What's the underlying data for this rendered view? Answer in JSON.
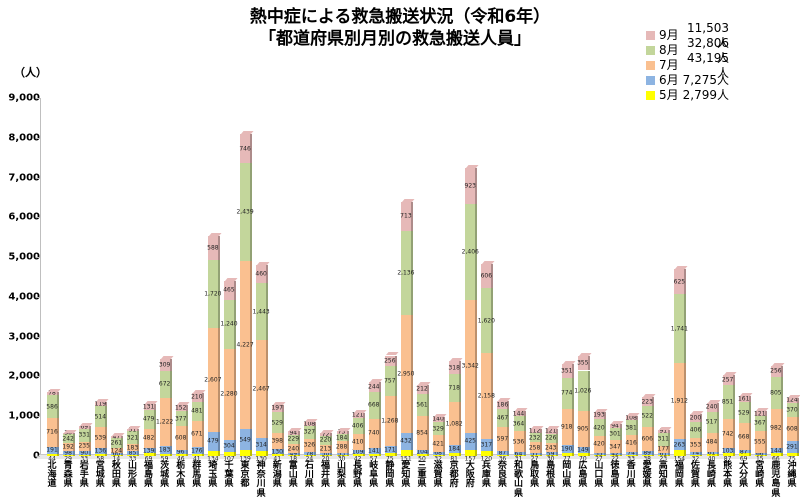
{
  "title": {
    "line1": "熱中症による救急搬送状況（令和6年）",
    "line2": "「都道府県別月別の救急搬送人員」"
  },
  "unit_label": "（人）",
  "legend": [
    {
      "month": "9月",
      "value": "11,503人",
      "color": "#e6b9b8"
    },
    {
      "month": "8月",
      "value": "32,806人",
      "color": "#c3d69b"
    },
    {
      "month": "7月",
      "value": "43,195人",
      "color": "#fac090"
    },
    {
      "month": "6月",
      "value": "7,275人",
      "color": "#8db4e2"
    },
    {
      "month": "5月",
      "value": "2,799人",
      "color": "#ffff00"
    }
  ],
  "y_ticks": [
    "0",
    "1,000",
    "2,000",
    "3,000",
    "4,000",
    "5,000",
    "6,000",
    "7,000",
    "8,000",
    "9,000"
  ],
  "chart_data": {
    "type": "bar",
    "stacked": true,
    "title": "熱中症による救急搬送状況（令和6年）「都道府県別月別の救急搬送人員」",
    "xlabel": "",
    "ylabel": "（人）",
    "ylim": [
      0,
      9000
    ],
    "legend_position": "top-right",
    "categories": [
      "北海道",
      "青森県",
      "岩手県",
      "宮城県",
      "秋田県",
      "山形県",
      "福島県",
      "茨城県",
      "栃木県",
      "群馬県",
      "埼玉県",
      "千葉県",
      "東京都",
      "神奈川県",
      "新潟県",
      "富山県",
      "石川県",
      "福井県",
      "山梨県",
      "長野県",
      "岐阜県",
      "静岡県",
      "愛知県",
      "三重県",
      "滋賀県",
      "京都府",
      "大阪府",
      "兵庫県",
      "奈良県",
      "和歌山県",
      "鳥取県",
      "島根県",
      "岡山県",
      "広島県",
      "山口県",
      "徳島県",
      "香川県",
      "愛媛県",
      "高知県",
      "福岡県",
      "佐賀県",
      "長崎県",
      "熊本県",
      "大分県",
      "宮崎県",
      "鹿児島県",
      "沖縄県"
    ],
    "series": [
      {
        "name": "5月",
        "color": "#ffff00",
        "values": [
          44,
          29,
          33,
          58,
          14,
          33,
          69,
          59,
          46,
          41,
          134,
          107,
          139,
          130,
          41,
          18,
          24,
          20,
          30,
          42,
          57,
          75,
          151,
          50,
          32,
          81,
          157,
          120,
          36,
          31,
          27,
          30,
          77,
          70,
          27,
          22,
          33,
          38,
          23,
          154,
          32,
          40,
          87,
          69,
          15,
          66,
          75
        ]
      },
      {
        "name": "6月",
        "color": "#8db4e2",
        "values": [
          191,
          98,
          90,
          136,
          60,
          85,
          139,
          183,
          96,
          176,
          479,
          304,
          549,
          314,
          130,
          49,
          78,
          50,
          53,
          109,
          141,
          171,
          432,
          104,
          68,
          184,
          425,
          317,
          87,
          64,
          57,
          59,
          190,
          149,
          55,
          42,
          74,
          89,
          61,
          263,
          74,
          61,
          103,
          87,
          66,
          144,
          291
        ]
      },
      {
        "name": "7月",
        "color": "#fac090",
        "values": [
          716,
          192,
          235,
          539,
          124,
          183,
          482,
          1222,
          608,
          671,
          2607,
          2280,
          4227,
          2467,
          398,
          240,
          326,
          213,
          288,
          410,
          740,
          1268,
          2950,
          854,
          421,
          1082,
          3342,
          2158,
          597,
          536,
          258,
          243,
          918,
          905,
          420,
          347,
          416,
          606,
          177,
          1912,
          353,
          484,
          742,
          668,
          555,
          982,
          608
        ]
      },
      {
        "name": "8月",
        "color": "#c3d69b",
        "values": [
          586,
          242,
          331,
          514,
          261,
          321,
          479,
          672,
          377,
          481,
          1720,
          1240,
          2439,
          1443,
          529,
          229,
          327,
          220,
          184,
          406,
          668,
          757,
          2136,
          561,
          329,
          718,
          2406,
          1620,
          467,
          364,
          232,
          226,
          774,
          1026,
          420,
          301,
          381,
          522,
          311,
          1741,
          406,
          517,
          851,
          529,
          367,
          805,
          370
        ]
      },
      {
        "name": "9月",
        "color": "#e6b9b8",
        "values": [
          78,
          30,
          69,
          119,
          47,
          51,
          131,
          309,
          152,
          210,
          588,
          465,
          746,
          460,
          197,
          94,
          108,
          72,
          73,
          121,
          244,
          256,
          713,
          212,
          140,
          318,
          923,
          606,
          186,
          144,
          112,
          121,
          351,
          355,
          193,
          94,
          108,
          223,
          91,
          625,
          200,
          240,
          257,
          161,
          121,
          256,
          124
        ]
      }
    ]
  }
}
